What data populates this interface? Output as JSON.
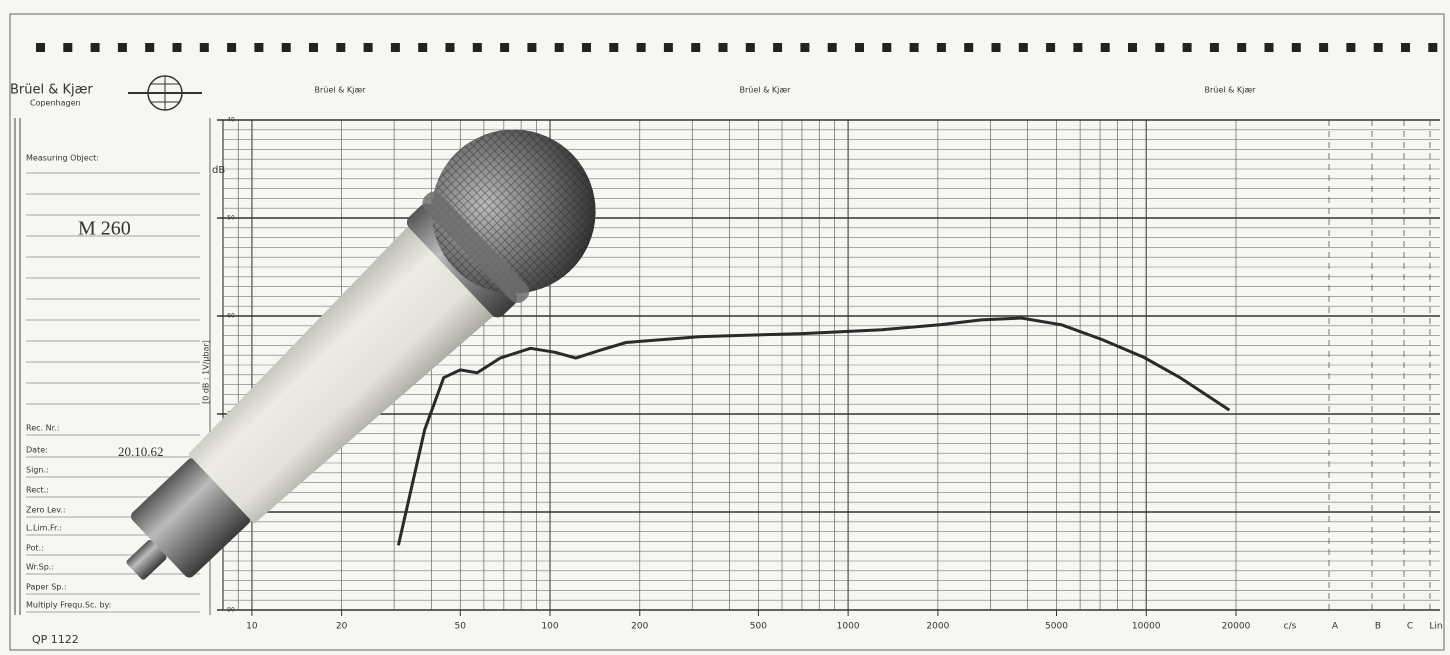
{
  "form": {
    "brand": "Brüel & Kjær",
    "city": "Copenhagen",
    "measuring_object_label": "Measuring Object:",
    "measuring_object": "M 260",
    "fields": [
      "Rec. Nr.:",
      "Date:",
      "Sign.:",
      "Rect.:",
      "Zero Lev.:",
      "L.Lim.Fr.:",
      "Pot.:",
      "Wr.Sp.:",
      "Paper Sp.:",
      "Multiply Frequ.Sc. by:"
    ],
    "date": "20.10.62",
    "form_number": "QP 1122"
  },
  "chart_data": {
    "type": "line",
    "header_labels": [
      "Brüel & Kjær",
      "Brüel & Kjær",
      "Brüel & Kjær"
    ],
    "ylabel": "[0 dB : 1V/μbar]",
    "yunit": "dB",
    "x_scale": "log",
    "grid": true,
    "xlim": [
      8,
      20000
    ],
    "ylim": [
      -90,
      -40
    ],
    "xticks": [
      10,
      20,
      50,
      100,
      200,
      500,
      1000,
      2000,
      5000,
      10000,
      20000
    ],
    "yticks": [
      -40,
      -50,
      -60,
      -70,
      -80,
      -90
    ],
    "extra_columns": [
      "c/s",
      "A",
      "B",
      "C",
      "Lin"
    ],
    "series": [
      {
        "color": "#2a2a2a",
        "x": [
          31,
          38,
          44,
          50,
          57,
          68,
          86,
          104,
          122,
          147,
          180,
          320,
          700,
          1300,
          2030,
          2800,
          3800,
          5200,
          7100,
          9800,
          13000,
          19000
        ],
        "values": [
          -83.4,
          -71.6,
          -66.3,
          -65.5,
          -65.8,
          -64.3,
          -63.3,
          -63.7,
          -64.3,
          -63.5,
          -62.7,
          -62.1,
          -61.8,
          -61.4,
          -60.9,
          -60.4,
          -60.2,
          -60.9,
          -62.4,
          -64.2,
          -66.3,
          -69.6
        ]
      }
    ]
  }
}
